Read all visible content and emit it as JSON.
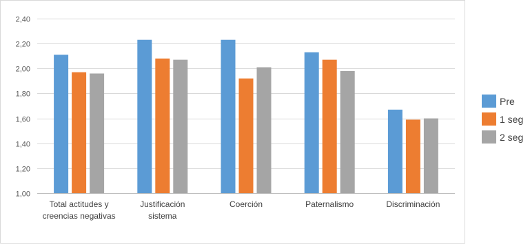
{
  "chart_data": {
    "type": "bar",
    "categories": [
      [
        "Total actitudes y",
        "creencias negativas"
      ],
      [
        "Justificación",
        "sistema"
      ],
      [
        "Coerción"
      ],
      [
        "Paternalismo"
      ],
      [
        "Discriminación"
      ]
    ],
    "series": [
      {
        "name": "Pre",
        "color": "#5B9BD5",
        "values": [
          2.11,
          2.23,
          2.23,
          2.13,
          1.67
        ]
      },
      {
        "name": "1 seg",
        "color": "#ED7D31",
        "values": [
          1.97,
          2.08,
          1.92,
          2.07,
          1.59
        ]
      },
      {
        "name": "2 seg",
        "color": "#A5A5A5",
        "values": [
          1.96,
          2.07,
          2.01,
          1.98,
          1.6
        ]
      }
    ],
    "yticks": [
      "1,00",
      "1,20",
      "1,40",
      "1,60",
      "1,80",
      "2,00",
      "2,20",
      "2,40"
    ],
    "ylim": [
      1.0,
      2.4
    ],
    "ystep": 0.2,
    "grid": true,
    "legend_position": "right"
  }
}
